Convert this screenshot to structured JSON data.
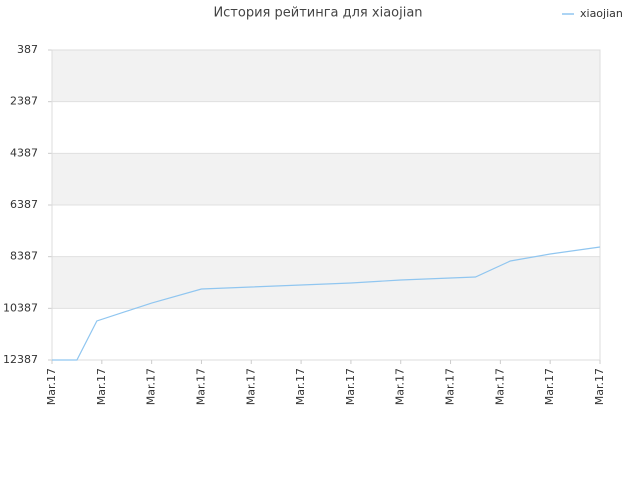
{
  "chart_data": {
    "type": "line",
    "title": "История рейтинга для xiaojian",
    "x": [
      0,
      0.5,
      0.9,
      2,
      3,
      4,
      5,
      6,
      7,
      8,
      8.5,
      9.2,
      10,
      11
    ],
    "series": [
      {
        "name": "xiaojian",
        "color": "#90c6f0",
        "values": [
          12387,
          12387,
          10877,
          10181,
          9639,
          9561,
          9484,
          9406,
          9290,
          9213,
          9174,
          8555,
          8284,
          8013
        ]
      }
    ],
    "xlim": [
      0,
      11
    ],
    "xticks": [
      {
        "value": 0,
        "label": "Mar.17"
      },
      {
        "value": 1,
        "label": "Mar.17"
      },
      {
        "value": 2,
        "label": "Mar.17"
      },
      {
        "value": 3,
        "label": "Mar.17"
      },
      {
        "value": 4,
        "label": "Mar.17"
      },
      {
        "value": 5,
        "label": "Mar.17"
      },
      {
        "value": 6,
        "label": "Mar.17"
      },
      {
        "value": 7,
        "label": "Mar.17"
      },
      {
        "value": 8,
        "label": "Mar.17"
      },
      {
        "value": 9,
        "label": "Mar.17"
      },
      {
        "value": 10,
        "label": "Mar.17"
      },
      {
        "value": 11,
        "label": "Mar.17"
      }
    ],
    "ylim": [
      12387,
      387
    ],
    "yticks": [
      387,
      2387,
      4387,
      6387,
      8387,
      10387,
      12387
    ],
    "grid": true,
    "legend": "top-right"
  }
}
